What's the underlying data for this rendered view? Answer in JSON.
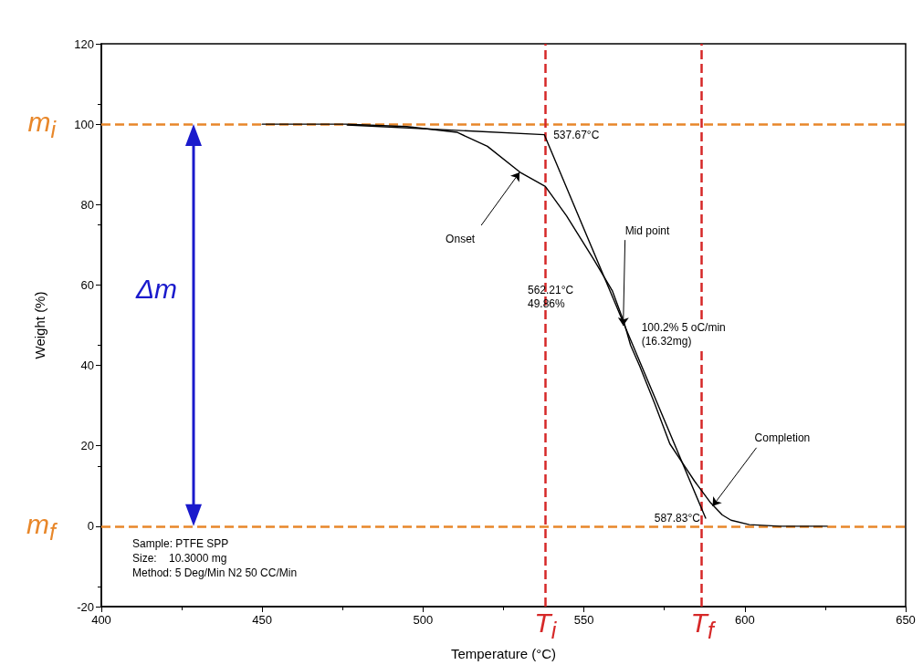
{
  "chart_data": {
    "type": "line",
    "xlabel": "Temperature (°C)",
    "ylabel": "Weight (%)",
    "xlim": [
      400,
      650
    ],
    "xticks": [
      400,
      450,
      500,
      550,
      600,
      650
    ],
    "ylim": [
      -20,
      120
    ],
    "yticks": [
      -20,
      0,
      20,
      40,
      60,
      80,
      100,
      120
    ],
    "grid": false,
    "marker": "none",
    "line_style": "solid",
    "series": [
      {
        "color": "#000000",
        "x": [
          450,
          476.4,
          495,
          510.5,
          520,
          530.4,
          538,
          544.6,
          553,
          558.8,
          562.5,
          564.5,
          567.3,
          572,
          576.7,
          584.4,
          589.2,
          593,
          595.7,
          601.4,
          610.8,
          625.6
        ],
        "values": [
          100,
          100,
          99.4,
          98,
          94.5,
          87.9,
          84.5,
          77.2,
          66.4,
          58.6,
          50.6,
          45,
          39.9,
          30.5,
          20.5,
          11.2,
          6,
          2.8,
          1.5,
          0.4,
          0,
          0
        ]
      },
      {
        "color": "#000000",
        "x": [
          476.4,
          537.67,
          587.83
        ],
        "values": [
          99.8,
          97.4,
          2
        ]
      }
    ],
    "ref_lines": [
      {
        "axis": "y",
        "value": 100,
        "label": "m$_{i}$",
        "color": "#e8872a",
        "line_style": "dashed"
      },
      {
        "axis": "y",
        "value": 0,
        "label": "m$_{f}$",
        "color": "#e8872a",
        "line_style": "dashed"
      },
      {
        "axis": "x",
        "value": 538,
        "label": "T$_{i}$",
        "color": "#d62828",
        "line_style": "dashed"
      },
      {
        "axis": "x",
        "value": 586.6,
        "label": "T$_{f}$",
        "color": "#d62828",
        "line_style": "dashed"
      }
    ],
    "annotations": [
      {
        "text": "537.67°C",
        "x": 537.67,
        "y": 97.4
      },
      {
        "text": "Onset",
        "x": 530,
        "y": 88
      },
      {
        "text": "Mid point",
        "x": 562.21,
        "y": 49.86
      },
      "562.21°C\n49.86%",
      {
        "text": "100.2% 5 oC/min\n(16.32mg)",
        "x": 564.5,
        "y": 45
      },
      {
        "text": "Completion",
        "x": 590,
        "y": 5
      },
      {
        "text": "587.83°C",
        "x": 587.83,
        "y": 0
      },
      "Δm",
      "Sample: PTFE SPP",
      "Size:    10.3000 mg",
      "Method: 5 Deg/Min N2 50 CC/Min"
    ]
  }
}
